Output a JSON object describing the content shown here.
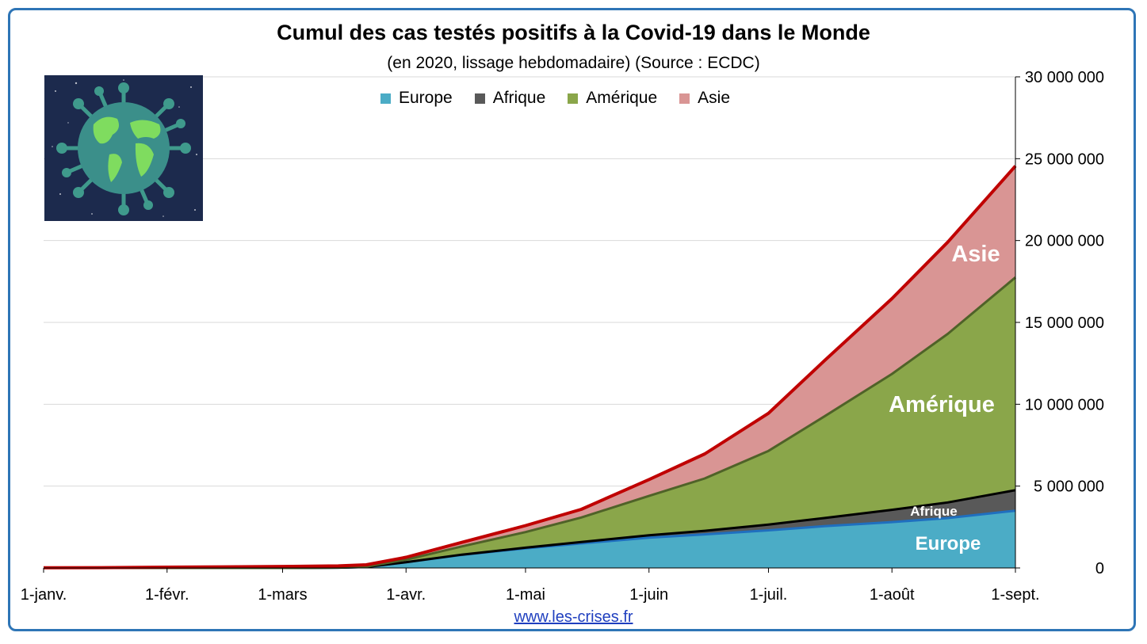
{
  "chart_data": {
    "type": "area",
    "stacked": true,
    "title": "Cumul des cas testés positifs à la Covid-19 dans le Monde",
    "subtitle": "(en 2020, lissage hebdomadaire) (Source : ECDC)",
    "x": [
      "2020-01-01",
      "2020-01-15",
      "2020-02-01",
      "2020-02-15",
      "2020-03-01",
      "2020-03-15",
      "2020-03-22",
      "2020-04-01",
      "2020-04-15",
      "2020-05-01",
      "2020-05-15",
      "2020-06-01",
      "2020-06-15",
      "2020-07-01",
      "2020-07-15",
      "2020-08-01",
      "2020-08-15",
      "2020-09-01"
    ],
    "x_ticks": [
      "1-janv.",
      "1-févr.",
      "1-mars",
      "1-avr.",
      "1-mai",
      "1-juin",
      "1-juil.",
      "1-août",
      "1-sept."
    ],
    "y_ticks": [
      "0",
      "5 000 000",
      "10 000 000",
      "15 000 000",
      "20 000 000",
      "25 000 000",
      "30 000 000"
    ],
    "ylim": [
      0,
      30000000
    ],
    "y_axis_side": "right",
    "grid": true,
    "legend_position": "top",
    "series": [
      {
        "name": "Europe",
        "color": "#4bacc6",
        "line_color": "#1f6fbf",
        "label": "Europe",
        "values": [
          0,
          0,
          0,
          0,
          2000,
          20000,
          60000,
          350000,
          800000,
          1200000,
          1500000,
          1850000,
          2050000,
          2300000,
          2550000,
          2800000,
          3050000,
          3500000
        ]
      },
      {
        "name": "Afrique",
        "color": "#595959",
        "line_color": "#000000",
        "label": "Afrique",
        "values": [
          0,
          0,
          0,
          0,
          0,
          500,
          2000,
          5000,
          15000,
          40000,
          80000,
          150000,
          220000,
          350000,
          500000,
          750000,
          950000,
          1250000
        ]
      },
      {
        "name": "Amérique",
        "color": "#8aa64a",
        "line_color": "#4f6228",
        "label": "Amérique",
        "values": [
          0,
          0,
          0,
          0,
          100,
          5000,
          20000,
          150000,
          500000,
          950000,
          1500000,
          2400000,
          3200000,
          4500000,
          6200000,
          8300000,
          10300000,
          13000000
        ]
      },
      {
        "name": "Asie",
        "color": "#d99594",
        "line_color": "#c00000",
        "label": "Asie",
        "values": [
          10000,
          20000,
          50000,
          70000,
          90000,
          100000,
          110000,
          150000,
          250000,
          400000,
          500000,
          1000000,
          1500000,
          2300000,
          3400000,
          4600000,
          5600000,
          6800000
        ]
      }
    ]
  },
  "source_link": "www.les-crises.fr",
  "image": {
    "name": "coronavirus-globe-image"
  }
}
